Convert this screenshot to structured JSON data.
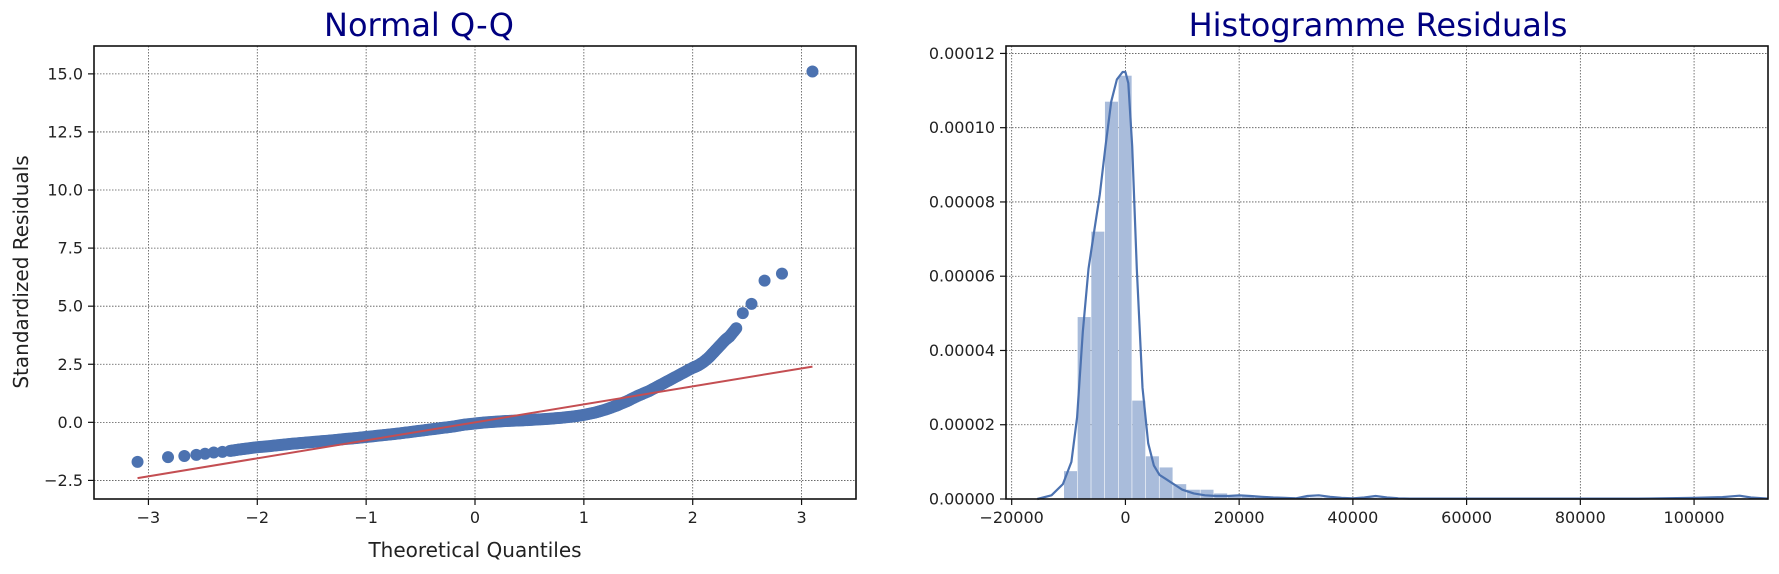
{
  "colors": {
    "title": "#000080",
    "points": "#4c72b0",
    "reference_line": "#c44e52",
    "bars": "#a9bcdb",
    "kde": "#4c72b0"
  },
  "chart_data": [
    {
      "type": "scatter",
      "title": "Normal Q-Q",
      "xlabel": "Theoretical Quantiles",
      "ylabel": "Standardized Residuals",
      "xlim": [
        -3.5,
        3.5
      ],
      "ylim": [
        -3.3,
        16.2
      ],
      "grid": true,
      "xticks": [
        -3,
        -2,
        -1,
        0,
        1,
        2,
        3
      ],
      "xtick_labels": [
        "−3",
        "−2",
        "−1",
        "0",
        "1",
        "2",
        "3"
      ],
      "yticks": [
        -2.5,
        0.0,
        2.5,
        5.0,
        7.5,
        10.0,
        12.5,
        15.0
      ],
      "ytick_labels": [
        "−2.5",
        "0.0",
        "2.5",
        "5.0",
        "7.5",
        "10.0",
        "12.5",
        "15.0"
      ],
      "series": [
        {
          "kind": "points",
          "x": [
            -3.1,
            -2.82,
            -2.67,
            -2.56,
            -2.48,
            -2.4,
            -2.32,
            -2.25,
            -2.18,
            -2.1,
            -2.0,
            -1.9,
            -1.8,
            -1.7,
            -1.6,
            -1.5,
            -1.4,
            -1.3,
            -1.2,
            -1.1,
            -1.0,
            -0.9,
            -0.8,
            -0.7,
            -0.6,
            -0.5,
            -0.4,
            -0.3,
            -0.2,
            -0.1,
            0.0,
            0.1,
            0.2,
            0.3,
            0.4,
            0.5,
            0.6,
            0.7,
            0.8,
            0.9,
            1.0,
            1.1,
            1.2,
            1.3,
            1.4,
            1.5,
            1.6,
            1.7,
            1.8,
            1.9,
            2.0,
            2.05,
            2.1,
            2.15,
            2.2,
            2.25,
            2.3,
            2.34,
            2.4,
            2.46,
            2.54,
            2.66,
            2.82,
            3.1
          ],
          "y": [
            -1.7,
            -1.5,
            -1.45,
            -1.4,
            -1.35,
            -1.3,
            -1.27,
            -1.23,
            -1.18,
            -1.13,
            -1.07,
            -1.03,
            -0.98,
            -0.93,
            -0.89,
            -0.85,
            -0.81,
            -0.77,
            -0.72,
            -0.68,
            -0.63,
            -0.58,
            -0.53,
            -0.48,
            -0.42,
            -0.36,
            -0.3,
            -0.24,
            -0.18,
            -0.1,
            -0.05,
            0.0,
            0.03,
            0.06,
            0.08,
            0.1,
            0.13,
            0.16,
            0.2,
            0.25,
            0.32,
            0.42,
            0.55,
            0.72,
            0.92,
            1.15,
            1.35,
            1.6,
            1.85,
            2.1,
            2.35,
            2.45,
            2.6,
            2.8,
            3.05,
            3.3,
            3.55,
            3.7,
            4.05,
            4.7,
            5.1,
            6.1,
            6.4,
            15.1
          ]
        },
        {
          "kind": "line",
          "x": [
            -3.1,
            3.1
          ],
          "y": [
            -2.4,
            2.4
          ]
        }
      ]
    },
    {
      "type": "bar",
      "title": "Histogramme Residuals",
      "xlabel": "",
      "ylabel": "",
      "xlim": [
        -21000,
        113000
      ],
      "ylim": [
        0,
        0.000122
      ],
      "grid": true,
      "xticks": [
        -20000,
        0,
        20000,
        40000,
        60000,
        80000,
        100000
      ],
      "xtick_labels": [
        "−20000",
        "0",
        "20000",
        "40000",
        "60000",
        "80000",
        "100000"
      ],
      "yticks": [
        0,
        2e-05,
        4e-05,
        6e-05,
        8e-05,
        0.0001,
        0.00012
      ],
      "ytick_labels": [
        "0.00000",
        "0.00002",
        "0.00004",
        "0.00006",
        "0.00008",
        "0.00010",
        "0.00012"
      ],
      "bin_start": -10800,
      "bin_width": 2400,
      "values": [
        7.5e-06,
        4.9e-05,
        7.2e-05,
        0.000107,
        0.000114,
        2.65e-05,
        1.15e-05,
        8.5e-06,
        4e-06,
        2.5e-06,
        2.5e-06,
        1.5e-06,
        1e-06,
        1e-06,
        8e-07,
        5e-07,
        5e-07,
        4e-07,
        4e-07,
        4e-07,
        3e-07,
        3e-07,
        3e-07,
        2e-07,
        2e-07,
        2e-07,
        2e-07,
        2e-07,
        2e-07,
        2e-07,
        2e-07,
        2e-07,
        2e-07,
        2e-07,
        2e-07,
        2e-07,
        2e-07,
        2e-07,
        2e-07,
        2e-07,
        2e-07,
        2e-07,
        2e-07,
        2e-07,
        2e-07,
        2e-07,
        2e-07,
        2e-07,
        2e-07,
        2e-07
      ],
      "kde": {
        "x": [
          -15500,
          -13000,
          -11000,
          -9500,
          -8500,
          -7500,
          -6500,
          -5500,
          -4500,
          -3500,
          -2500,
          -1500,
          -500,
          0,
          500,
          1200,
          2000,
          3000,
          4000,
          5000,
          6000,
          7000,
          8000,
          9000,
          10000,
          12000,
          14000,
          16000,
          18000,
          20000,
          22000,
          24000,
          26000,
          28000,
          30000,
          32000,
          34000,
          36000,
          38000,
          40000,
          42000,
          44000,
          46000,
          48000,
          50000,
          60000,
          70000,
          80000,
          90000,
          100000,
          105000,
          108000,
          110000,
          113000
        ],
        "y": [
          0,
          1e-06,
          4e-06,
          1e-05,
          2.2e-05,
          4.5e-05,
          6.2e-05,
          7.2e-05,
          8.2e-05,
          9.5e-05,
          0.000107,
          0.000113,
          0.000115,
          0.000115,
          0.000112,
          9.5e-05,
          6.2e-05,
          3e-05,
          1.5e-05,
          9e-06,
          6.5e-06,
          5.5e-06,
          4.5e-06,
          3.5e-06,
          2.5e-06,
          1.5e-06,
          1e-06,
          8e-07,
          8e-07,
          1e-06,
          8e-07,
          6e-07,
          4e-07,
          3e-07,
          2e-07,
          8e-07,
          1e-06,
          6e-07,
          3e-07,
          2e-07,
          4e-07,
          8e-07,
          4e-07,
          2e-07,
          1e-07,
          1e-07,
          1e-07,
          1e-07,
          1e-07,
          3e-07,
          5e-07,
          9e-07,
          4e-07,
          1e-07
        ]
      }
    }
  ]
}
